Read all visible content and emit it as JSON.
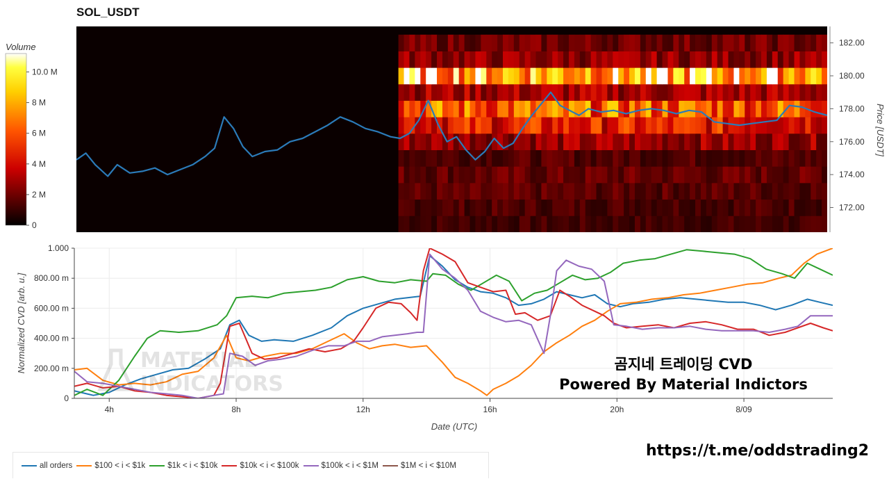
{
  "header": {
    "title": "SOL_USDT"
  },
  "promo": {
    "title": "곰지네 트레이딩 CVD",
    "subtitle": "Powered By Material Indictors",
    "link": "https://t.me/oddstrading2"
  },
  "watermark": {
    "line1": "MATERIAL",
    "line2": "INDICATORS"
  },
  "colors": {
    "all_orders": "#1f77b4",
    "s100_1k": "#ff7f0e",
    "s1k_10k": "#2ca02c",
    "s10k_100k": "#d62728",
    "s100k_1m": "#9467bd",
    "s1m_10m": "#8c564b",
    "heatmap_low": "#000000",
    "heatmap_mid": "#ff0000",
    "heatmap_high": "#ffff00",
    "heatmap_top": "#ffffff"
  },
  "chart_data": [
    {
      "type": "heatmap",
      "title": "SOL_USDT",
      "colorbar": {
        "label": "Volume",
        "ticks": [
          "0",
          "2 M",
          "4 M",
          "6 M",
          "8 M",
          "10.0 M"
        ],
        "tick_values": [
          0,
          2,
          4,
          6,
          8,
          10
        ],
        "range": [
          0,
          11.2
        ]
      },
      "ylabel": "Price [USDT]",
      "yticks": [
        "172.00",
        "174.00",
        "176.00",
        "178.00",
        "180.00",
        "182.00"
      ],
      "ytick_values": [
        172,
        174,
        176,
        178,
        180,
        182
      ],
      "ylim": [
        170.5,
        183
      ],
      "x_range_hours": [
        2.9,
        26.8
      ],
      "heatmap_start_hour": 13.15,
      "price_levels": [
        171,
        172,
        173,
        174,
        175,
        176,
        177,
        178,
        179,
        180,
        181,
        182
      ],
      "level_profile_millions": {
        "171": 1.2,
        "172": 1.4,
        "173": 1.6,
        "174": 1.8,
        "175": 1.5,
        "176": 2.8,
        "177": 4.6,
        "178": 6.2,
        "179": 3.0,
        "180": 8.6,
        "181": 2.6,
        "182": 2.0
      },
      "price_series": {
        "name": "price",
        "x": [
          2.9,
          3.2,
          3.5,
          3.9,
          4.2,
          4.6,
          5.0,
          5.4,
          5.8,
          6.2,
          6.6,
          7.0,
          7.3,
          7.6,
          7.9,
          8.2,
          8.5,
          8.9,
          9.3,
          9.7,
          10.1,
          10.5,
          10.9,
          11.3,
          11.7,
          12.1,
          12.5,
          12.9,
          13.2,
          13.5,
          13.8,
          14.1,
          14.4,
          14.7,
          15.0,
          15.3,
          15.6,
          15.9,
          16.2,
          16.5,
          16.8,
          17.1,
          17.4,
          17.7,
          18.0,
          18.3,
          18.6,
          18.9,
          19.2,
          19.6,
          20.0,
          20.4,
          20.8,
          21.2,
          21.6,
          22.0,
          22.4,
          22.8,
          23.2,
          23.6,
          24.0,
          24.4,
          24.8,
          25.2,
          25.6,
          26.0,
          26.4,
          26.8
        ],
        "y": [
          174.9,
          175.3,
          174.6,
          173.9,
          174.6,
          174.1,
          174.2,
          174.4,
          174.0,
          174.3,
          174.6,
          175.1,
          175.6,
          177.5,
          176.8,
          175.7,
          175.1,
          175.4,
          175.5,
          176.0,
          176.2,
          176.6,
          177.0,
          177.5,
          177.2,
          176.8,
          176.6,
          176.3,
          176.2,
          176.5,
          177.3,
          178.5,
          177.1,
          176.0,
          176.3,
          175.5,
          174.9,
          175.4,
          176.2,
          175.6,
          175.9,
          176.8,
          177.6,
          178.3,
          179.0,
          178.2,
          177.9,
          177.6,
          178.0,
          177.8,
          177.9,
          177.7,
          177.9,
          178.0,
          177.9,
          177.7,
          177.9,
          177.8,
          177.2,
          177.1,
          177.0,
          177.1,
          177.2,
          177.3,
          178.2,
          178.1,
          177.8,
          177.6
        ]
      }
    },
    {
      "type": "line",
      "xlabel": "Date (UTC)",
      "ylabel": "Normalized CVD [arb. u.]",
      "xticks": [
        "4h",
        "8h",
        "12h",
        "16h",
        "20h",
        "8/09"
      ],
      "xtick_values": [
        4,
        8,
        12,
        16,
        20,
        24
      ],
      "xlim": [
        2.9,
        26.8
      ],
      "yticks": [
        "0",
        "200.00 m",
        "400.00 m",
        "600.00 m",
        "800.00 m",
        "1.000"
      ],
      "ytick_values": [
        0,
        0.2,
        0.4,
        0.6,
        0.8,
        1.0
      ],
      "ylim": [
        0,
        1.0
      ],
      "grid": true,
      "legend_position": "bottom-left",
      "series": [
        {
          "name": "all orders",
          "color_key": "all_orders",
          "x": [
            2.9,
            3.5,
            4.0,
            4.5,
            5.0,
            5.5,
            6.0,
            6.5,
            7.0,
            7.5,
            7.8,
            8.1,
            8.4,
            8.8,
            9.2,
            9.8,
            10.4,
            11.0,
            11.5,
            12.0,
            12.5,
            13.0,
            13.4,
            13.8,
            14.1,
            14.5,
            14.9,
            15.3,
            15.7,
            16.1,
            16.5,
            16.9,
            17.3,
            17.7,
            18.1,
            18.5,
            18.9,
            19.3,
            19.7,
            20.1,
            20.5,
            21.0,
            21.5,
            22.0,
            22.5,
            23.0,
            23.5,
            24.0,
            24.5,
            25.0,
            25.5,
            26.0,
            26.4,
            26.8
          ],
          "y": [
            0.05,
            0.02,
            0.04,
            0.09,
            0.13,
            0.16,
            0.19,
            0.2,
            0.26,
            0.33,
            0.49,
            0.52,
            0.42,
            0.38,
            0.39,
            0.38,
            0.42,
            0.47,
            0.55,
            0.6,
            0.63,
            0.66,
            0.67,
            0.68,
            0.95,
            0.88,
            0.79,
            0.74,
            0.71,
            0.7,
            0.67,
            0.62,
            0.63,
            0.66,
            0.71,
            0.69,
            0.67,
            0.69,
            0.63,
            0.61,
            0.63,
            0.64,
            0.66,
            0.67,
            0.66,
            0.65,
            0.64,
            0.64,
            0.62,
            0.59,
            0.62,
            0.66,
            0.64,
            0.62
          ]
        },
        {
          "name": "$100 < i < $1k",
          "color_key": "s100_1k",
          "x": [
            2.9,
            3.3,
            3.8,
            4.3,
            4.8,
            5.3,
            5.8,
            6.3,
            6.8,
            7.3,
            7.7,
            8.0,
            8.4,
            8.9,
            9.4,
            9.9,
            10.4,
            10.9,
            11.4,
            11.8,
            12.2,
            12.6,
            13.0,
            13.5,
            14.0,
            14.5,
            14.9,
            15.3,
            15.7,
            15.9,
            16.1,
            16.5,
            16.9,
            17.3,
            17.7,
            18.1,
            18.5,
            18.9,
            19.3,
            19.7,
            20.1,
            20.6,
            21.1,
            21.6,
            22.1,
            22.6,
            23.1,
            23.6,
            24.1,
            24.6,
            25.1,
            25.5,
            25.9,
            26.3,
            26.8
          ],
          "y": [
            0.19,
            0.2,
            0.12,
            0.09,
            0.1,
            0.09,
            0.11,
            0.16,
            0.18,
            0.27,
            0.42,
            0.27,
            0.25,
            0.28,
            0.3,
            0.3,
            0.33,
            0.38,
            0.43,
            0.37,
            0.33,
            0.35,
            0.36,
            0.34,
            0.35,
            0.24,
            0.14,
            0.1,
            0.05,
            0.02,
            0.06,
            0.1,
            0.15,
            0.22,
            0.31,
            0.37,
            0.42,
            0.48,
            0.52,
            0.58,
            0.63,
            0.64,
            0.66,
            0.67,
            0.69,
            0.7,
            0.72,
            0.74,
            0.76,
            0.77,
            0.8,
            0.82,
            0.9,
            0.96,
            1.0
          ]
        },
        {
          "name": "$1k < i < $10k",
          "color_key": "s1k_10k",
          "x": [
            2.9,
            3.3,
            3.8,
            4.3,
            4.8,
            5.2,
            5.6,
            6.2,
            6.8,
            7.4,
            7.7,
            8.0,
            8.5,
            9.0,
            9.5,
            10.0,
            10.5,
            11.0,
            11.5,
            12.0,
            12.5,
            13.0,
            13.5,
            14.0,
            14.2,
            14.6,
            15.0,
            15.4,
            15.8,
            16.2,
            16.6,
            17.0,
            17.4,
            17.8,
            18.2,
            18.6,
            19.0,
            19.4,
            19.8,
            20.2,
            20.7,
            21.2,
            21.7,
            22.2,
            22.7,
            23.2,
            23.7,
            24.2,
            24.7,
            25.2,
            25.6,
            26.0,
            26.4,
            26.8
          ],
          "y": [
            0.02,
            0.06,
            0.02,
            0.12,
            0.28,
            0.4,
            0.45,
            0.44,
            0.45,
            0.49,
            0.55,
            0.67,
            0.68,
            0.67,
            0.7,
            0.71,
            0.72,
            0.74,
            0.79,
            0.81,
            0.78,
            0.77,
            0.79,
            0.78,
            0.83,
            0.82,
            0.76,
            0.72,
            0.77,
            0.82,
            0.78,
            0.65,
            0.7,
            0.72,
            0.77,
            0.82,
            0.79,
            0.8,
            0.84,
            0.9,
            0.92,
            0.93,
            0.96,
            0.99,
            0.98,
            0.97,
            0.96,
            0.93,
            0.86,
            0.83,
            0.8,
            0.9,
            0.86,
            0.82
          ]
        },
        {
          "name": "$10k < i < $100k",
          "color_key": "s10k_100k",
          "x": [
            2.9,
            3.3,
            3.8,
            4.3,
            4.8,
            5.3,
            5.8,
            6.3,
            6.8,
            7.3,
            7.5,
            7.8,
            8.1,
            8.5,
            8.9,
            9.3,
            9.8,
            10.3,
            10.8,
            11.3,
            11.7,
            12.0,
            12.4,
            12.8,
            13.2,
            13.5,
            13.7,
            13.9,
            14.1,
            14.5,
            14.9,
            15.3,
            15.7,
            16.1,
            16.5,
            16.8,
            17.1,
            17.5,
            17.9,
            18.2,
            18.5,
            18.9,
            19.3,
            19.6,
            19.9,
            20.3,
            20.8,
            21.3,
            21.8,
            22.3,
            22.8,
            23.3,
            23.8,
            24.3,
            24.8,
            25.3,
            25.7,
            26.1,
            26.5,
            26.8
          ],
          "y": [
            0.08,
            0.1,
            0.07,
            0.08,
            0.05,
            0.04,
            0.02,
            0.01,
            0.0,
            0.02,
            0.1,
            0.48,
            0.5,
            0.3,
            0.26,
            0.27,
            0.3,
            0.33,
            0.31,
            0.33,
            0.38,
            0.47,
            0.6,
            0.64,
            0.63,
            0.57,
            0.52,
            0.85,
            1.0,
            0.96,
            0.91,
            0.77,
            0.74,
            0.71,
            0.72,
            0.56,
            0.57,
            0.52,
            0.55,
            0.72,
            0.68,
            0.62,
            0.58,
            0.55,
            0.5,
            0.47,
            0.48,
            0.49,
            0.47,
            0.5,
            0.51,
            0.49,
            0.46,
            0.46,
            0.42,
            0.44,
            0.47,
            0.5,
            0.47,
            0.45
          ]
        },
        {
          "name": "$100k < i < $1M",
          "color_key": "s100k_1m",
          "x": [
            2.9,
            3.3,
            3.8,
            4.3,
            4.8,
            5.3,
            5.8,
            6.3,
            6.8,
            7.3,
            7.6,
            7.8,
            8.2,
            8.6,
            9.0,
            9.4,
            9.9,
            10.4,
            10.9,
            11.4,
            11.8,
            12.2,
            12.6,
            13.0,
            13.4,
            13.7,
            13.9,
            14.1,
            14.5,
            14.9,
            15.3,
            15.7,
            16.1,
            16.5,
            16.9,
            17.3,
            17.7,
            17.9,
            18.1,
            18.4,
            18.8,
            19.2,
            19.6,
            19.9,
            20.3,
            20.8,
            21.3,
            21.8,
            22.3,
            22.8,
            23.3,
            23.8,
            24.3,
            24.8,
            25.3,
            25.7,
            26.1,
            26.5,
            26.8
          ],
          "y": [
            0.18,
            0.11,
            0.1,
            0.08,
            0.06,
            0.04,
            0.03,
            0.02,
            0.0,
            0.02,
            0.03,
            0.3,
            0.28,
            0.22,
            0.25,
            0.26,
            0.28,
            0.32,
            0.35,
            0.35,
            0.38,
            0.38,
            0.41,
            0.42,
            0.43,
            0.44,
            0.44,
            0.96,
            0.86,
            0.8,
            0.72,
            0.58,
            0.54,
            0.51,
            0.52,
            0.49,
            0.3,
            0.55,
            0.85,
            0.92,
            0.88,
            0.86,
            0.78,
            0.49,
            0.48,
            0.46,
            0.47,
            0.47,
            0.48,
            0.46,
            0.45,
            0.45,
            0.45,
            0.44,
            0.46,
            0.48,
            0.55,
            0.55,
            0.55
          ]
        },
        {
          "name": "$1M < i < $10M",
          "color_key": "s1m_10m",
          "x": [],
          "y": []
        }
      ]
    }
  ]
}
